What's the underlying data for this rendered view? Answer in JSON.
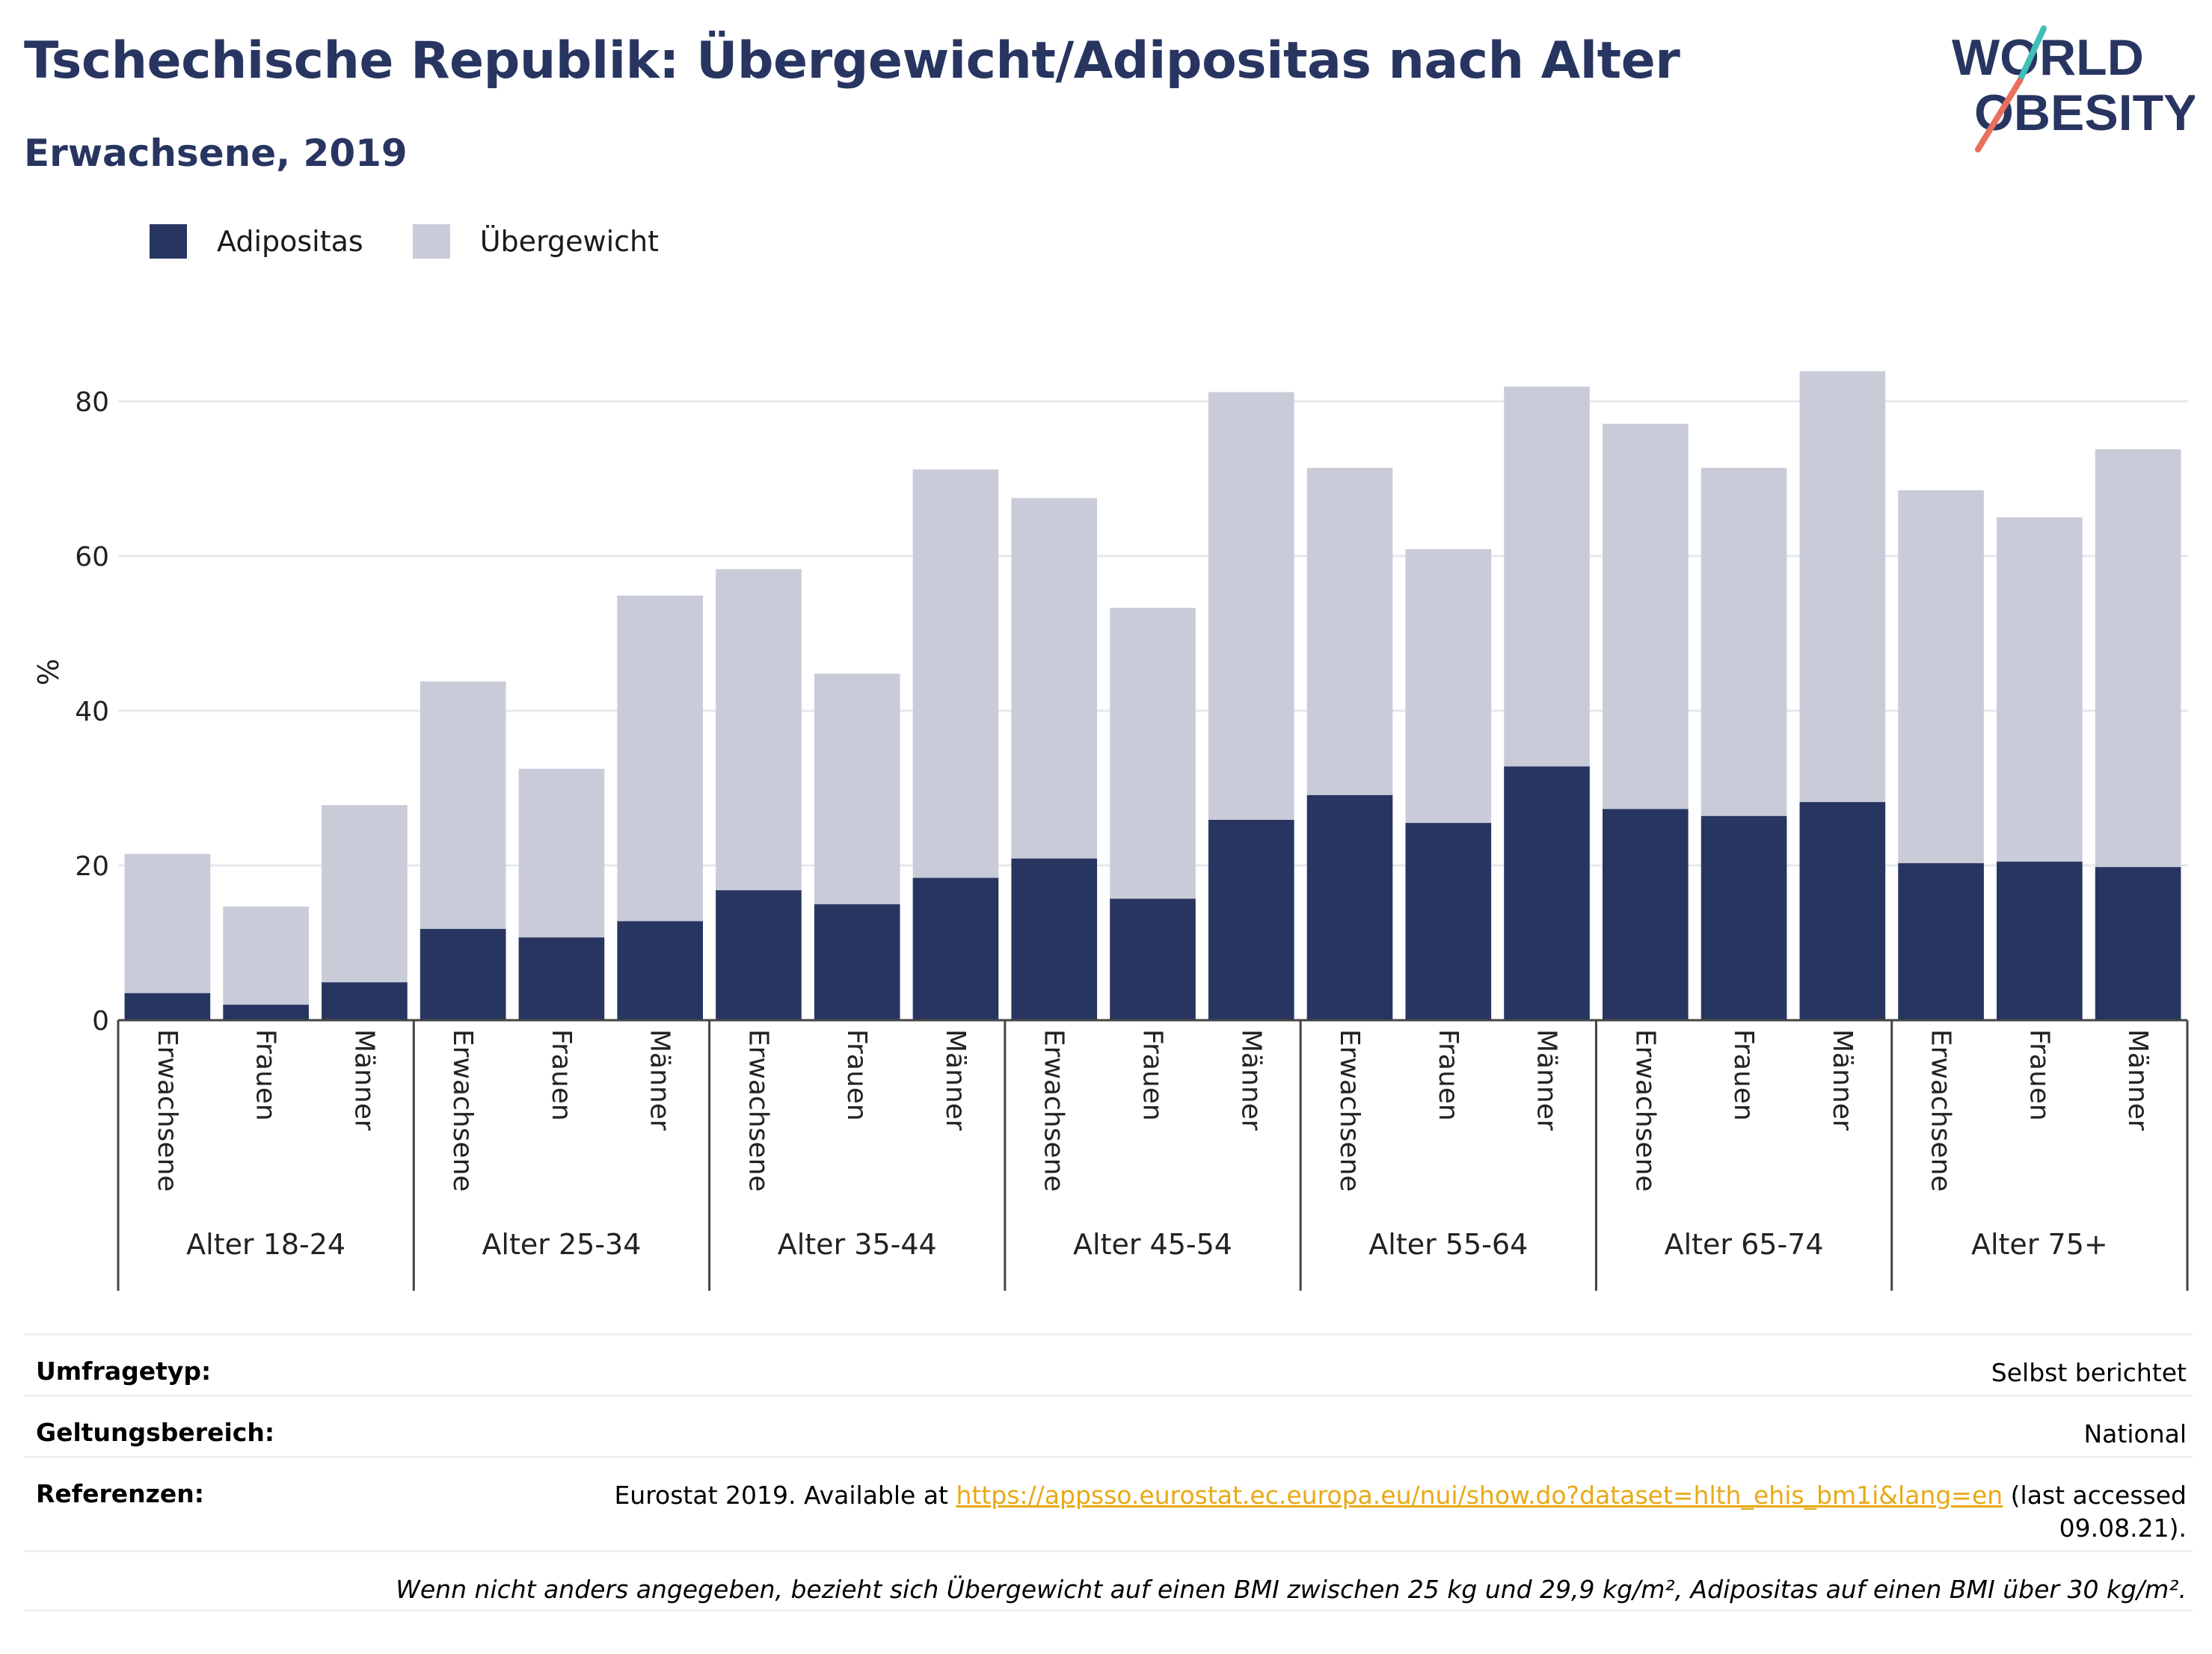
{
  "header": {
    "title": "Tschechische Republik: Übergewicht/Adipositas nach Alter",
    "subtitle": "Erwachsene, 2019",
    "logo_line1": "WORLD",
    "logo_line2": "OBESITY"
  },
  "legend": {
    "obesity": "Adipositas",
    "overweight": "Übergewicht"
  },
  "colors": {
    "obesity": "#283561",
    "overweight": "#c9ccd8",
    "axis": "#444444",
    "grid": "#e6e8ee",
    "logo_teal": "#3fbfb5",
    "logo_coral": "#e8705d",
    "link": "#e8a916"
  },
  "chart_data": {
    "type": "bar",
    "stacked": true,
    "ylabel": "%",
    "ylim": [
      0,
      90
    ],
    "yticks": [
      0,
      20,
      40,
      60,
      80
    ],
    "grid": true,
    "legend_position": "top-left",
    "groups": [
      "Alter 18-24",
      "Alter 25-34",
      "Alter 35-44",
      "Alter 45-54",
      "Alter 55-64",
      "Alter 65-74",
      "Alter 75+"
    ],
    "subcategories": [
      "Erwachsene",
      "Frauen",
      "Männer"
    ],
    "series": [
      {
        "name": "Adipositas",
        "values": [
          3.5,
          2.0,
          4.9,
          11.8,
          10.7,
          12.8,
          16.8,
          15.0,
          18.4,
          20.9,
          15.7,
          25.9,
          29.1,
          25.5,
          32.8,
          27.3,
          26.4,
          28.2,
          20.3,
          20.5,
          19.8
        ]
      },
      {
        "name": "Übergewicht",
        "values": [
          18.0,
          12.7,
          22.9,
          32.0,
          21.8,
          42.1,
          41.5,
          29.8,
          52.8,
          46.6,
          37.6,
          55.3,
          42.3,
          35.4,
          49.1,
          49.8,
          45.0,
          55.7,
          48.2,
          44.5,
          54.0
        ]
      }
    ]
  },
  "meta": {
    "survey_label": "Umfragetyp:",
    "survey_value": "Selbst berichtet",
    "scope_label": "Geltungsbereich:",
    "scope_value": "National",
    "ref_label": "Referenzen:",
    "ref_prefix": "Eurostat 2019. Available at ",
    "ref_link": "https://appsso.eurostat.ec.europa.eu/nui/show.do?dataset=hlth_ehis_bm1i&lang=en",
    "ref_suffix": " (last accessed",
    "ref_suffix2": "09.08.21).",
    "note": "Wenn nicht anders angegeben, bezieht sich Übergewicht auf einen BMI zwischen 25 kg und 29,9 kg/m², Adipositas auf einen BMI über 30 kg/m²."
  }
}
